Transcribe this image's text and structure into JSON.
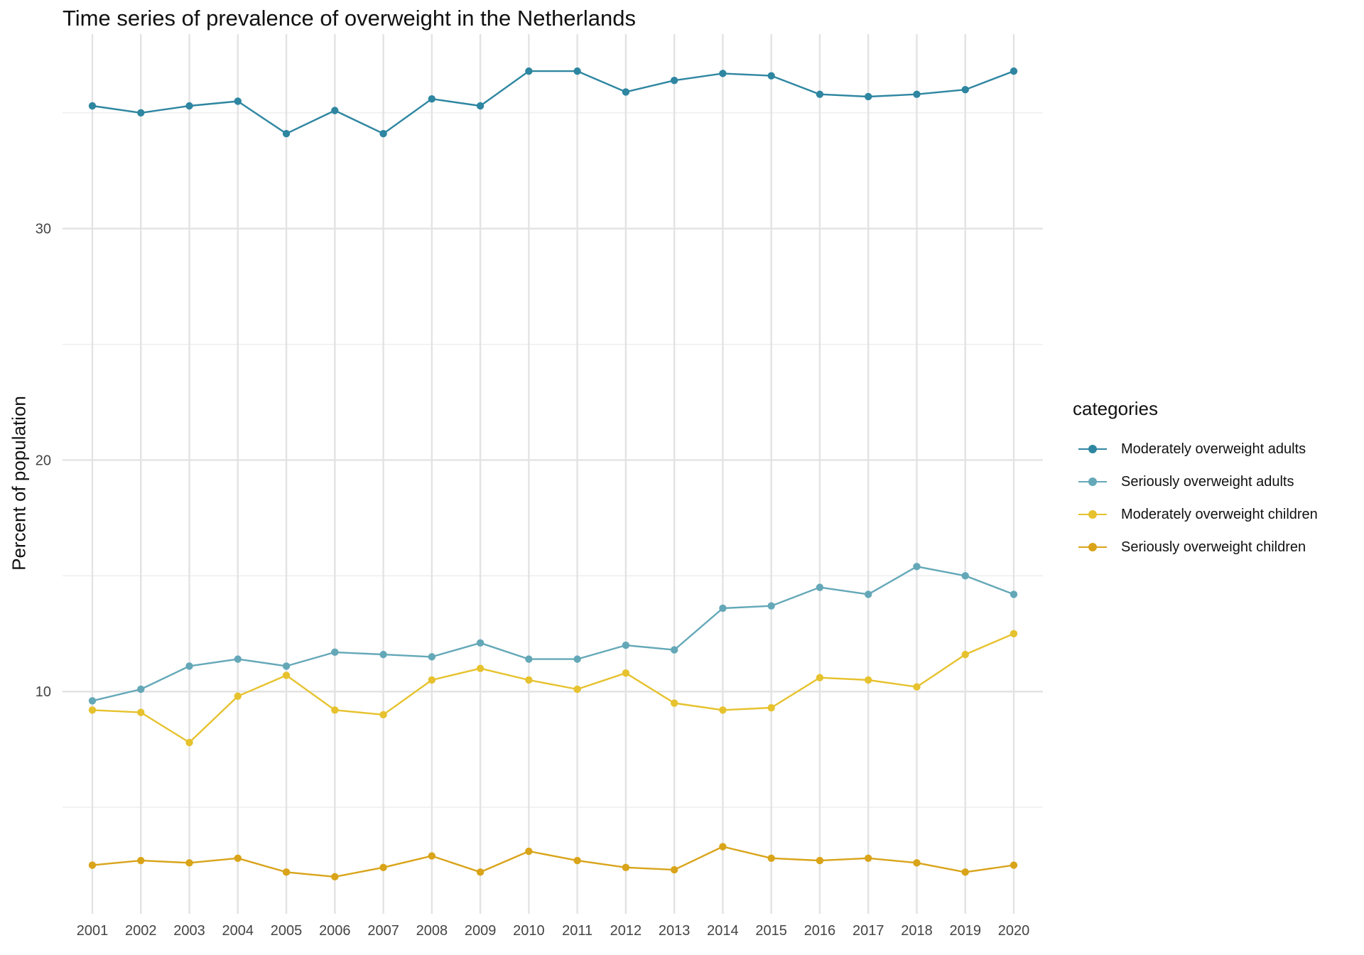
{
  "chart_data": {
    "type": "line",
    "title": "Time series of prevalence of overweight in the Netherlands",
    "xlabel": "",
    "ylabel": "Percent of population",
    "x": [
      "2001",
      "2002",
      "2003",
      "2004",
      "2005",
      "2006",
      "2007",
      "2008",
      "2009",
      "2010",
      "2011",
      "2012",
      "2013",
      "2014",
      "2015",
      "2016",
      "2017",
      "2018",
      "2019",
      "2020"
    ],
    "y_ticks": [
      "10",
      "20",
      "30"
    ],
    "ylim": [
      0.4,
      38.4
    ],
    "grid": true,
    "legend_title": "categories",
    "legend_position": "right",
    "series": [
      {
        "name": "Moderately overweight adults",
        "color": "#2e86a1",
        "values": [
          35.3,
          35.0,
          35.3,
          35.5,
          34.1,
          35.1,
          34.1,
          35.6,
          35.3,
          36.8,
          36.8,
          35.9,
          36.4,
          36.7,
          36.6,
          35.8,
          35.7,
          35.8,
          36.0,
          36.8
        ]
      },
      {
        "name": "Seriously overweight adults",
        "color": "#64a8b8",
        "values": [
          9.6,
          10.1,
          11.1,
          11.4,
          11.1,
          11.7,
          11.6,
          11.5,
          12.1,
          11.4,
          11.4,
          12.0,
          11.8,
          13.6,
          13.7,
          14.5,
          14.2,
          15.4,
          15.0,
          14.2
        ]
      },
      {
        "name": "Moderately overweight children",
        "color": "#e6c22e",
        "values": [
          9.2,
          9.1,
          7.8,
          9.8,
          10.7,
          9.2,
          9.0,
          10.5,
          11.0,
          10.5,
          10.1,
          10.8,
          9.5,
          9.2,
          9.3,
          10.6,
          10.5,
          10.2,
          11.6,
          12.5
        ]
      },
      {
        "name": "Seriously overweight children",
        "color": "#d9a41a",
        "values": [
          2.5,
          2.7,
          2.6,
          2.8,
          2.2,
          2.0,
          2.4,
          2.9,
          2.2,
          3.1,
          2.7,
          2.4,
          2.3,
          3.3,
          2.8,
          2.7,
          2.8,
          2.6,
          2.2,
          2.5
        ]
      }
    ]
  }
}
